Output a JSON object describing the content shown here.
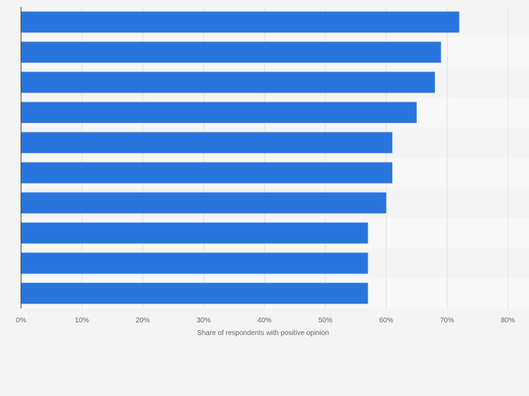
{
  "chart_data": {
    "type": "bar",
    "orientation": "horizontal",
    "title": "",
    "xlabel": "Share of respondents with positive opinion",
    "ylabel": "",
    "categories": [
      "",
      "",
      "",
      "",
      "",
      "",
      "",
      "",
      "",
      ""
    ],
    "values": [
      72,
      69,
      68,
      65,
      61,
      61,
      60,
      57,
      57,
      57
    ],
    "xlim": [
      0,
      80
    ],
    "ticks": [
      0,
      10,
      20,
      30,
      40,
      50,
      60,
      70,
      80
    ],
    "tick_labels": [
      "0%",
      "10%",
      "20%",
      "30%",
      "40%",
      "50%",
      "60%",
      "70%",
      "80%"
    ],
    "grid": true,
    "bar_color": "#2876dd",
    "band_colors": [
      "#f4f4f4",
      "#f8f8f8"
    ],
    "gridline_color": "#e1e1e1",
    "axis_color": "#333333"
  }
}
